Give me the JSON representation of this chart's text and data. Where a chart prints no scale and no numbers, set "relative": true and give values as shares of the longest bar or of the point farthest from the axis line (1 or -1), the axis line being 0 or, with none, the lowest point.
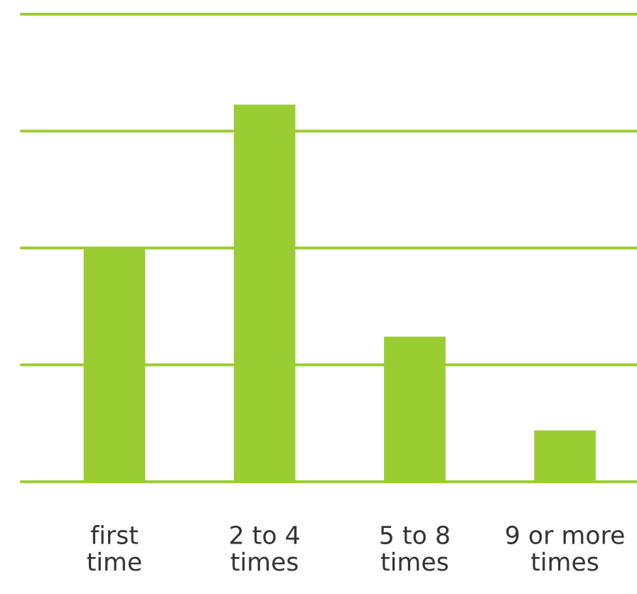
{
  "chart_data": {
    "type": "bar",
    "relative": true,
    "categories": [
      "first time",
      "2 to 4 times",
      "5 to 8 times",
      "9 or more times"
    ],
    "values": [
      0.62,
      1,
      0.385,
      0.136
    ],
    "color": "#9acd32",
    "tick_labels": "x",
    "ref_lines": [
      {
        "axis": "y",
        "value": 0,
        "color": "#9acd32"
      },
      {
        "axis": "y",
        "value": 0.31,
        "color": "#9acd32"
      },
      {
        "axis": "y",
        "value": 0.62,
        "color": "#9acd32"
      },
      {
        "axis": "y",
        "value": 0.93,
        "color": "#9acd32"
      },
      {
        "axis": "y",
        "value": 1.24,
        "color": "#9acd32"
      }
    ]
  }
}
